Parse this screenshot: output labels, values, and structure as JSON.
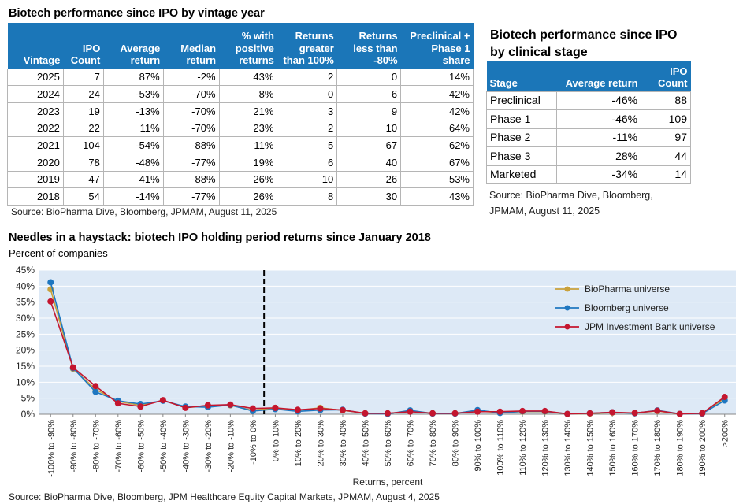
{
  "vintage_table": {
    "title": "Biotech performance since IPO by vintage year",
    "headers": [
      "Vintage",
      "IPO Count",
      "Average return",
      "Median return",
      "% with positive returns",
      "Returns greater than 100%",
      "Returns less than -80%",
      "Preclinical + Phase 1 share"
    ],
    "rows": [
      [
        "2025",
        "7",
        "87%",
        "-2%",
        "43%",
        "2",
        "0",
        "14%"
      ],
      [
        "2024",
        "24",
        "-53%",
        "-70%",
        "8%",
        "0",
        "6",
        "42%"
      ],
      [
        "2023",
        "19",
        "-13%",
        "-70%",
        "21%",
        "3",
        "9",
        "42%"
      ],
      [
        "2022",
        "22",
        "11%",
        "-70%",
        "23%",
        "2",
        "10",
        "64%"
      ],
      [
        "2021",
        "104",
        "-54%",
        "-88%",
        "11%",
        "5",
        "67",
        "62%"
      ],
      [
        "2020",
        "78",
        "-48%",
        "-77%",
        "19%",
        "6",
        "40",
        "67%"
      ],
      [
        "2019",
        "47",
        "41%",
        "-88%",
        "26%",
        "10",
        "26",
        "53%"
      ],
      [
        "2018",
        "54",
        "-14%",
        "-77%",
        "26%",
        "8",
        "30",
        "43%"
      ]
    ],
    "source": "Source: BioPharma Dive, Bloomberg, JPMAM, August 11, 2025"
  },
  "stage_table": {
    "title": "Biotech performance since IPO by clinical stage",
    "headers": [
      "Stage",
      "Average return",
      "IPO Count"
    ],
    "rows": [
      [
        "Preclinical",
        "-46%",
        "88"
      ],
      [
        "Phase 1",
        "-46%",
        "109"
      ],
      [
        "Phase 2",
        "-11%",
        "97"
      ],
      [
        "Phase 3",
        "28%",
        "44"
      ],
      [
        "Marketed",
        "-34%",
        "14"
      ]
    ],
    "source_line1": "Source: BioPharma Dive, Bloomberg,",
    "source_line2": "JPMAM, August 11, 2025"
  },
  "colors": {
    "header_blue": "#1b76b8",
    "plot_bg": "#dde9f6",
    "biopharma": "#c9a13b",
    "bloomberg": "#1f77c0",
    "jpm": "#c4162f"
  },
  "chart_data": {
    "type": "line",
    "title": "Needles in a haystack: biotech IPO holding period returns since January 2018",
    "subtitle": "Percent of companies",
    "xlabel": "Returns, percent",
    "ylabel": "",
    "ylim": [
      0,
      45
    ],
    "yticks": [
      "0%",
      "5%",
      "10%",
      "15%",
      "20%",
      "25%",
      "30%",
      "35%",
      "40%",
      "45%"
    ],
    "categories": [
      "-100% to -90%",
      "-90% to -80%",
      "-80% to -70%",
      "-70% to -60%",
      "-60% to -50%",
      "-50% to -40%",
      "-40% to -30%",
      "-30% to -20%",
      "-20% to -10%",
      "-10% to 0%",
      "0% to 10%",
      "10% to 20%",
      "20% to 30%",
      "30% to 40%",
      "40% to 50%",
      "50% to 60%",
      "60% to 70%",
      "70% to 80%",
      "80% to 90%",
      "90% to 100%",
      "100% to 110%",
      "110% to 120%",
      "120% to 130%",
      "130% to 140%",
      "140% to 150%",
      "150% to 160%",
      "160% to 170%",
      "170% to 180%",
      "180% to 190%",
      "190% to 200%",
      ">200%"
    ],
    "series": [
      {
        "name": "BioPharma universe",
        "values": [
          39,
          14.2,
          7.8,
          4.0,
          2.8,
          4.3,
          2.1,
          2.5,
          2.8,
          1.2,
          2.0,
          1.2,
          2.0,
          1.2,
          0.3,
          0.2,
          1.0,
          0.3,
          0.3,
          1.0,
          0.5,
          0.8,
          0.8,
          0.1,
          0.2,
          0.5,
          0.4,
          1.0,
          0.1,
          0.3,
          5.0
        ]
      },
      {
        "name": "Bloomberg universe",
        "values": [
          41.2,
          14.4,
          7.0,
          4.2,
          3.2,
          4.2,
          2.4,
          2.2,
          2.9,
          1.0,
          1.6,
          0.9,
          1.3,
          1.4,
          0.2,
          0.1,
          1.2,
          0.2,
          0.2,
          1.3,
          0.4,
          0.9,
          0.9,
          0.1,
          0.3,
          0.6,
          0.3,
          1.2,
          0.1,
          0.2,
          4.3
        ]
      },
      {
        "name": "JPM Investment Bank universe",
        "values": [
          35.2,
          14.6,
          8.8,
          3.4,
          2.4,
          4.4,
          2.0,
          2.8,
          3.0,
          1.8,
          2.0,
          1.4,
          1.8,
          1.3,
          0.3,
          0.3,
          0.8,
          0.3,
          0.3,
          0.8,
          0.8,
          1.0,
          1.0,
          0.1,
          0.3,
          0.6,
          0.4,
          1.1,
          0.1,
          0.3,
          5.4
        ]
      }
    ],
    "reference_line_after": "-10% to 0%",
    "legend_position": "top-right",
    "grid": "horizontal",
    "source": "Source: BioPharma Dive, Bloomberg, JPM Healthcare Equity Capital Markets, JPMAM, August 4, 2025"
  }
}
